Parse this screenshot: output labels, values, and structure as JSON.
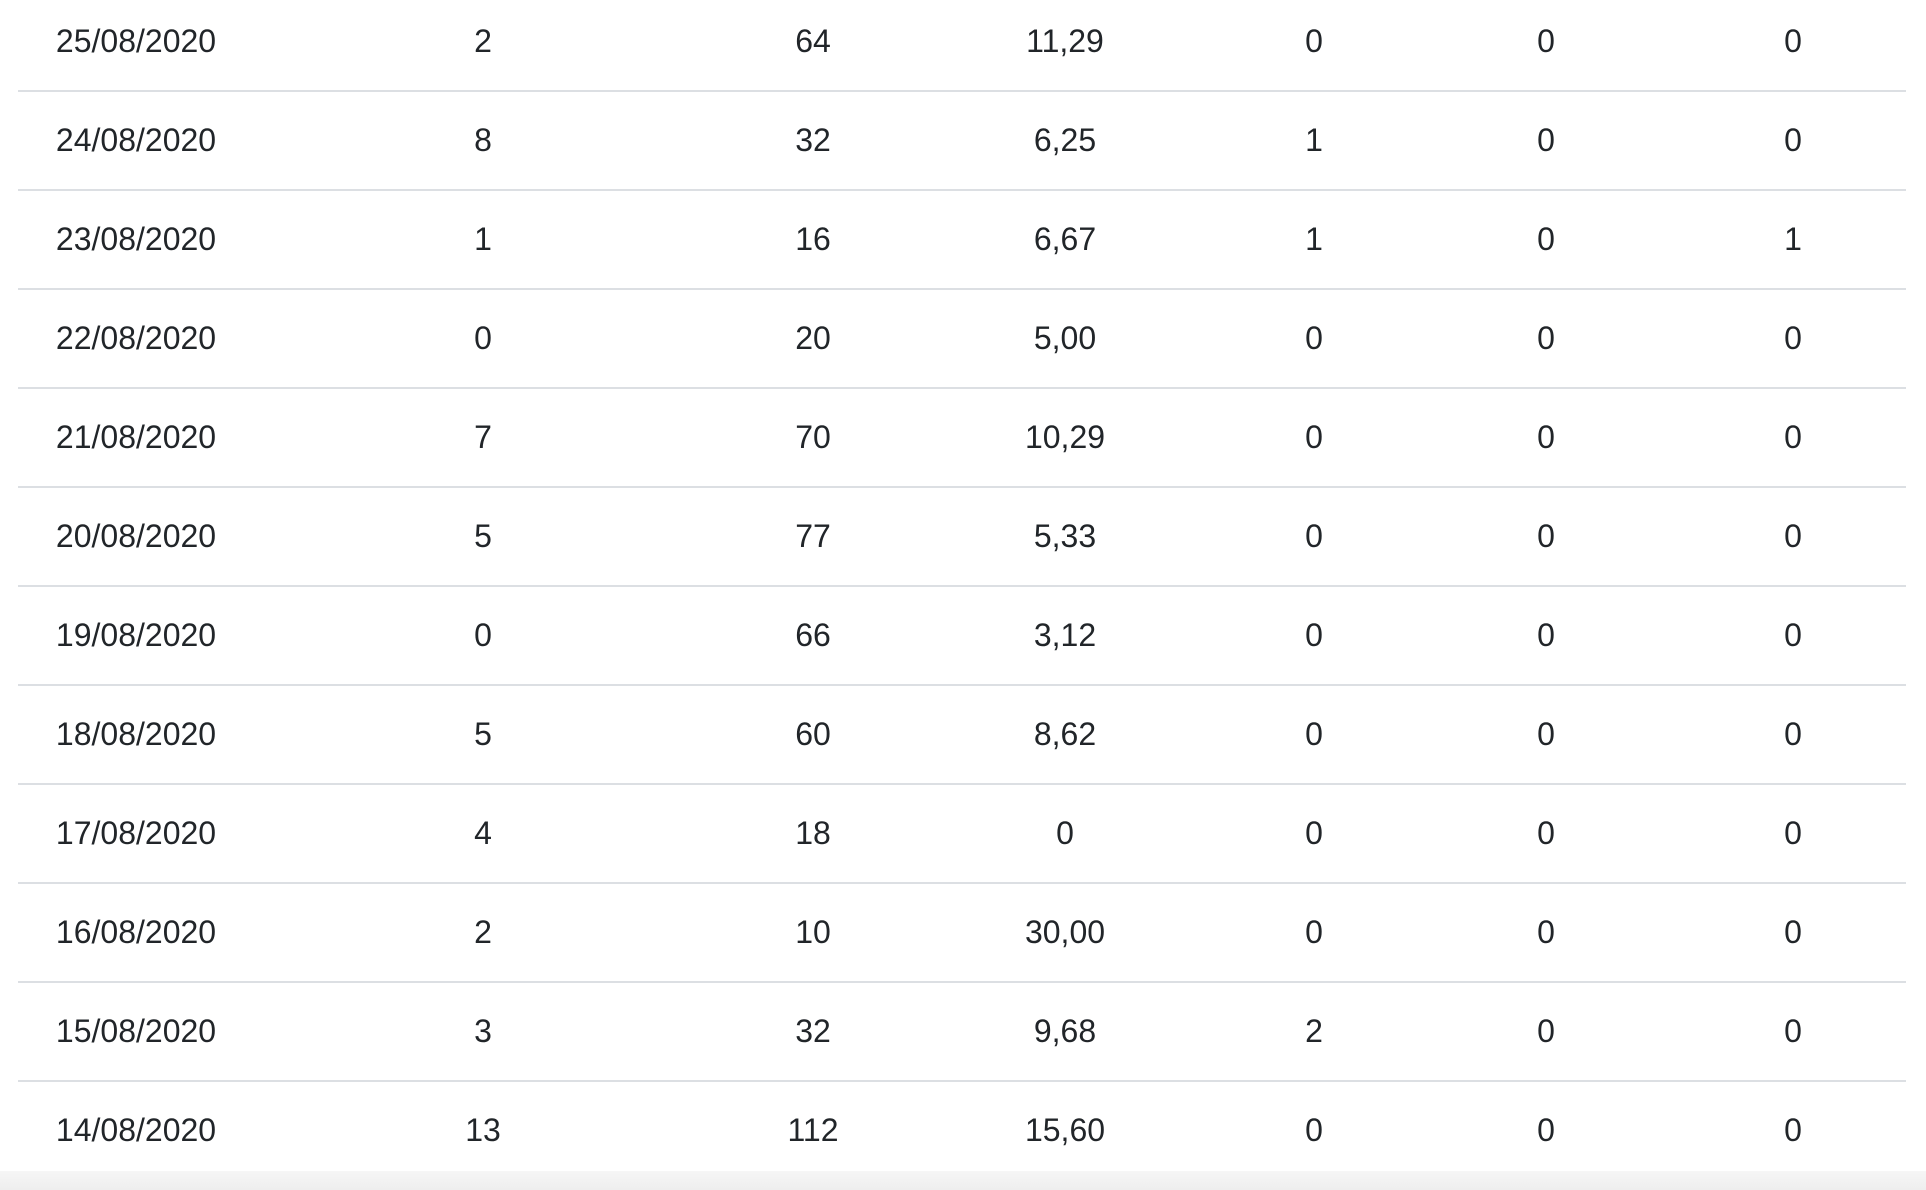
{
  "table": {
    "rows": [
      [
        "25/08/2020",
        "2",
        "64",
        "11,29",
        "0",
        "0",
        "0"
      ],
      [
        "24/08/2020",
        "8",
        "32",
        "6,25",
        "1",
        "0",
        "0"
      ],
      [
        "23/08/2020",
        "1",
        "16",
        "6,67",
        "1",
        "0",
        "1"
      ],
      [
        "22/08/2020",
        "0",
        "20",
        "5,00",
        "0",
        "0",
        "0"
      ],
      [
        "21/08/2020",
        "7",
        "70",
        "10,29",
        "0",
        "0",
        "0"
      ],
      [
        "20/08/2020",
        "5",
        "77",
        "5,33",
        "0",
        "0",
        "0"
      ],
      [
        "19/08/2020",
        "0",
        "66",
        "3,12",
        "0",
        "0",
        "0"
      ],
      [
        "18/08/2020",
        "5",
        "60",
        "8,62",
        "0",
        "0",
        "0"
      ],
      [
        "17/08/2020",
        "4",
        "18",
        "0",
        "0",
        "0",
        "0"
      ],
      [
        "16/08/2020",
        "2",
        "10",
        "30,00",
        "0",
        "0",
        "0"
      ],
      [
        "15/08/2020",
        "3",
        "32",
        "9,68",
        "2",
        "0",
        "0"
      ],
      [
        "14/08/2020",
        "13",
        "112",
        "15,60",
        "0",
        "0",
        "0"
      ]
    ]
  }
}
